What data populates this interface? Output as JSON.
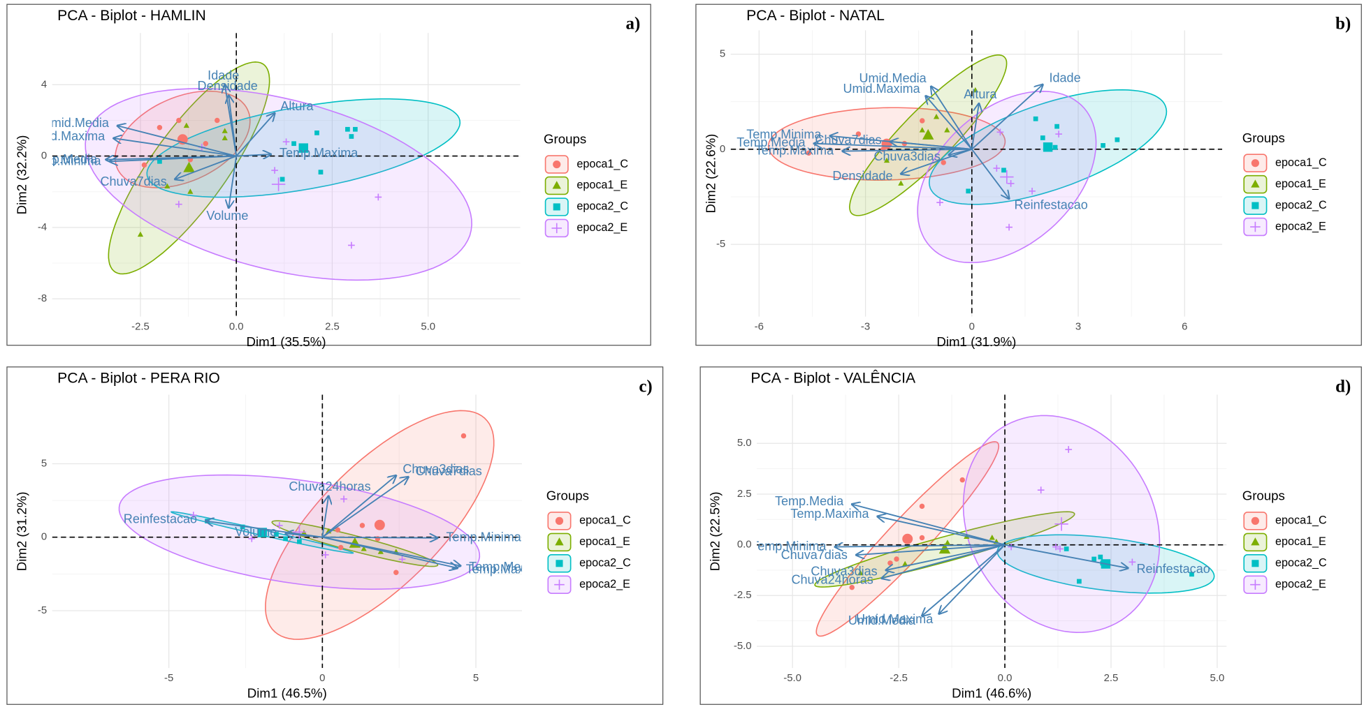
{
  "chart_data": [
    {
      "type": "scatter",
      "title": "PCA - Biplot -  HAMLIN",
      "label": "a)",
      "xlabel": "Dim1 (35.5%)",
      "ylabel": "Dim2 (32.2%)",
      "legend_title": "Groups",
      "legend": "right",
      "grid": true,
      "arrow_color": "#4682b4",
      "xlim": [
        -4.8,
        7.4
      ],
      "ylim": [
        -9,
        6.9
      ],
      "xticks": [
        -2.5,
        {
          "value": 0,
          "label": "0.0"
        },
        2.5,
        {
          "value": 5,
          "label": "5.0"
        }
      ],
      "yticks": [
        -8,
        -4,
        0,
        4
      ],
      "series": [
        {
          "name": "epoca1_C",
          "color": "#f8766d",
          "marker": "circle",
          "x": [
            -2.0,
            -1.5,
            -2.4,
            -0.8,
            -0.5,
            -1.2
          ],
          "y": [
            1.6,
            2.0,
            -0.5,
            0.7,
            2.0,
            -0.2
          ]
        },
        {
          "name": "epoca1_E",
          "color": "#7cae00",
          "marker": "triangle",
          "x": [
            -2.5,
            -0.3,
            -1.3,
            -1.2,
            -1.8,
            -0.3
          ],
          "y": [
            -4.4,
            1.0,
            1.7,
            -2.0,
            -1.7,
            1.4
          ]
        },
        {
          "name": "epoca2_C",
          "color": "#00bfc4",
          "marker": "square",
          "x": [
            1.5,
            2.1,
            2.9,
            3.0,
            3.1,
            2.2,
            1.2,
            -2.0
          ],
          "y": [
            0.7,
            1.3,
            1.5,
            1.1,
            1.5,
            -0.9,
            -1.3,
            -0.3
          ]
        },
        {
          "name": "epoca2_E",
          "color": "#c77cff",
          "marker": "plus",
          "x": [
            1.3,
            3.7,
            3.0,
            -1.5,
            1.0,
            -0.9
          ],
          "y": [
            0.8,
            -2.3,
            -5.0,
            -2.7,
            -0.8,
            0.5
          ]
        }
      ],
      "loadings": [
        {
          "name": "Idade",
          "x": -0.3,
          "y": 4.0
        },
        {
          "name": "Densidade",
          "x": -0.2,
          "y": 3.4
        },
        {
          "name": "Altura",
          "x": 1.0,
          "y": 2.4
        },
        {
          "name": "Umid.Media",
          "x": -3.1,
          "y": 1.7
        },
        {
          "name": "Umid.Maxima",
          "x": -3.2,
          "y": 1.0
        },
        {
          "name": "Temp.Media",
          "x": -3.4,
          "y": -0.2
        },
        {
          "name": "Temp.Minima",
          "x": -3.3,
          "y": -0.3
        },
        {
          "name": "Temp.Maxima",
          "x": 0.9,
          "y": 0.1
        },
        {
          "name": "Chuva7dias",
          "x": -1.6,
          "y": -1.3
        },
        {
          "name": "Volume",
          "x": -0.2,
          "y": -2.9
        }
      ]
    },
    {
      "type": "scatter",
      "title": "PCA - Biplot - NATAL",
      "label": "b)",
      "xlabel": "Dim1 (31.9%)",
      "ylabel": "Dim2 (22.6%)",
      "legend_title": "Groups",
      "legend": "right",
      "grid": true,
      "arrow_color": "#4682b4",
      "xlim": [
        -6.8,
        7.06
      ],
      "ylim": [
        -8.8,
        6.25
      ],
      "xticks": [
        -6,
        -3,
        0,
        3,
        6
      ],
      "yticks": [
        -5,
        0,
        5
      ],
      "series": [
        {
          "name": "epoca1_C",
          "color": "#f8766d",
          "marker": "circle",
          "x": [
            -4.6,
            -2.5,
            -0.8,
            -1.9,
            -1.4,
            -3.2
          ],
          "y": [
            -0.2,
            0,
            -0.7,
            0.3,
            1.5,
            0.8
          ]
        },
        {
          "name": "epoca1_E",
          "color": "#7cae00",
          "marker": "triangle",
          "x": [
            0.1,
            -1.0,
            -2.4,
            -1.4,
            -0.7,
            -2.0
          ],
          "y": [
            3.1,
            1.7,
            -0.6,
            1.0,
            1.0,
            -1.8
          ]
        },
        {
          "name": "epoca2_C",
          "color": "#00bfc4",
          "marker": "square",
          "x": [
            4.1,
            3.7,
            2.4,
            1.8,
            2.0,
            0.9,
            -0.1,
            2.35
          ],
          "y": [
            0.5,
            0.2,
            1.2,
            1.6,
            0.6,
            -1.1,
            -2.2,
            0.1
          ]
        },
        {
          "name": "epoca2_E",
          "color": "#c77cff",
          "marker": "plus",
          "x": [
            1.1,
            1.7,
            1.05,
            -0.9,
            0.8,
            2.45,
            0.7
          ],
          "y": [
            -1.8,
            -2.2,
            -4.1,
            -2.8,
            0.9,
            0.8,
            -1.0
          ]
        }
      ],
      "loadings": [
        {
          "name": "Idade",
          "x": 2.0,
          "y": 3.4
        },
        {
          "name": "Altura",
          "x": 0.2,
          "y": 2.4
        },
        {
          "name": "Umid.Media",
          "x": -1.15,
          "y": 3.3
        },
        {
          "name": "Umid.Maxima",
          "x": -1.3,
          "y": 2.8
        },
        {
          "name": "Temp.Minima",
          "x": -4.0,
          "y": 0.7
        },
        {
          "name": "Temp.Media",
          "x": -4.45,
          "y": 0.3
        },
        {
          "name": "Temp.Maxima",
          "x": -3.65,
          "y": -0.1
        },
        {
          "name": "Chuva7dias",
          "x": -2.3,
          "y": 0.4
        },
        {
          "name": "Chuva3dias",
          "x": -0.65,
          "y": -0.3
        },
        {
          "name": "Densidade",
          "x": -2.0,
          "y": -1.3
        },
        {
          "name": "Reinfestacao",
          "x": 1.05,
          "y": -2.6
        }
      ]
    },
    {
      "type": "scatter",
      "title": "PCA - Biplot - PERA RIO",
      "label": "c)",
      "xlabel": "Dim1 (46.5%)",
      "ylabel": "Dim2 (31.2%)",
      "legend_title": "Groups",
      "legend": "right",
      "grid": true,
      "arrow_color": "#4682b4",
      "xlim": [
        -8.8,
        6.5
      ],
      "ylim": [
        -8.9,
        9.7
      ],
      "xticks": [
        -5,
        0,
        5
      ],
      "yticks": [
        -5,
        0,
        5
      ],
      "series": [
        {
          "name": "epoca1_C",
          "color": "#f8766d",
          "marker": "circle",
          "x": [
            4.6,
            1.3,
            1.8,
            0.6,
            0.5,
            2.4
          ],
          "y": [
            6.9,
            0.8,
            -0.1,
            -0.7,
            0.5,
            -2.4
          ]
        },
        {
          "name": "epoca1_E",
          "color": "#7cae00",
          "marker": "triangle",
          "x": [
            1.35,
            1.1,
            1.9,
            2.4,
            0.2,
            -0.6
          ],
          "y": [
            -0.8,
            -0.5,
            -1.0,
            -1.0,
            0.4,
            0.3
          ]
        },
        {
          "name": "epoca2_C",
          "color": "#00bfc4",
          "marker": "square",
          "x": [
            -3.75,
            -1.2,
            -0.75,
            -1.5,
            -2.6
          ],
          "y": [
            1.1,
            -0.1,
            -0.3,
            0.2,
            0.7
          ]
        },
        {
          "name": "epoca2_E",
          "color": "#c77cff",
          "marker": "plus",
          "x": [
            0.7,
            -1.4,
            2.6,
            -2.3,
            0.1,
            -4.2
          ],
          "y": [
            2.6,
            0.8,
            -1.5,
            -0.1,
            -1.2,
            1.5
          ]
        }
      ],
      "loadings": [
        {
          "name": "Chuva3dias",
          "x": 2.4,
          "y": 4.2
        },
        {
          "name": "Chuva7dias",
          "x": 2.8,
          "y": 4.1
        },
        {
          "name": "Chuva24horas",
          "x": 0.2,
          "y": 2.8
        },
        {
          "name": "Temp.Minima",
          "x": 3.75,
          "y": -0.05
        },
        {
          "name": "Temp.Media",
          "x": 4.5,
          "y": -1.95
        },
        {
          "name": "Temp.Maxima",
          "x": 4.4,
          "y": -2.1
        },
        {
          "name": "Reinfestacao",
          "x": -3.8,
          "y": 1.1
        },
        {
          "name": "Volume",
          "x": -1.2,
          "y": 0.25
        }
      ]
    },
    {
      "type": "scatter",
      "title": "PCA - Biplot - VALÊNCIA",
      "label": "d)",
      "xlabel": "Dim1 (46.6%)",
      "ylabel": "Dim2 (22.5%)",
      "legend_title": "Groups",
      "legend": "right",
      "grid": true,
      "arrow_color": "#4682b4",
      "xlim": [
        -5.84,
        5.22
      ],
      "ylim": [
        -6.07,
        7.4
      ],
      "xticks": [
        {
          "value": -5,
          "label": "-5.0"
        },
        -2.5,
        {
          "value": 0,
          "label": "0.0"
        },
        2.5,
        {
          "value": 5,
          "label": "5.0"
        }
      ],
      "yticks": [
        {
          "value": -5,
          "label": "-5.0"
        },
        -2.5,
        {
          "value": 0,
          "label": "0.0"
        },
        2.5,
        {
          "value": 5,
          "label": "5.0"
        }
      ],
      "series": [
        {
          "name": "epoca1_C",
          "color": "#f8766d",
          "marker": "circle",
          "x": [
            -1.0,
            -1.95,
            -1.95,
            -3.6,
            -2.7,
            -2.55
          ],
          "y": [
            3.2,
            1.9,
            0.35,
            -2.1,
            -0.9,
            -0.7
          ]
        },
        {
          "name": "epoca1_E",
          "color": "#7cae00",
          "marker": "triangle",
          "x": [
            -3.4,
            -2.35,
            -1.35,
            -0.9,
            -0.3,
            -0.2
          ],
          "y": [
            -1.4,
            -0.95,
            0.1,
            0.4,
            0.35,
            0.15
          ]
        },
        {
          "name": "epoca2_C",
          "color": "#00bfc4",
          "marker": "square",
          "x": [
            4.4,
            2.25,
            1.75,
            1.45,
            2.1,
            2.3
          ],
          "y": [
            -1.45,
            -0.6,
            -1.8,
            -0.2,
            -0.7,
            -0.9
          ]
        },
        {
          "name": "epoca2_E",
          "color": "#c77cff",
          "marker": "plus",
          "x": [
            1.5,
            0.85,
            1.2,
            3.0,
            0.15,
            1.3
          ],
          "y": [
            4.7,
            2.7,
            -0.1,
            -0.85,
            -0.1,
            -0.2
          ]
        }
      ],
      "loadings": [
        {
          "name": "Temp.Media",
          "x": -3.6,
          "y": 2.0
        },
        {
          "name": "Temp.Maxima",
          "x": -3.0,
          "y": 1.4
        },
        {
          "name": "Temp.Minima",
          "x": -4.0,
          "y": -0.1
        },
        {
          "name": "Chuva7dias",
          "x": -3.5,
          "y": -0.5
        },
        {
          "name": "Chuva3dias",
          "x": -2.8,
          "y": -1.25
        },
        {
          "name": "Chuva24horas",
          "x": -2.9,
          "y": -1.65
        },
        {
          "name": "Umid.Media",
          "x": -1.95,
          "y": -3.5
        },
        {
          "name": "Umid.Maxima",
          "x": -1.55,
          "y": -3.4
        },
        {
          "name": "Reinfestacao",
          "x": 2.9,
          "y": -1.15
        }
      ]
    }
  ]
}
